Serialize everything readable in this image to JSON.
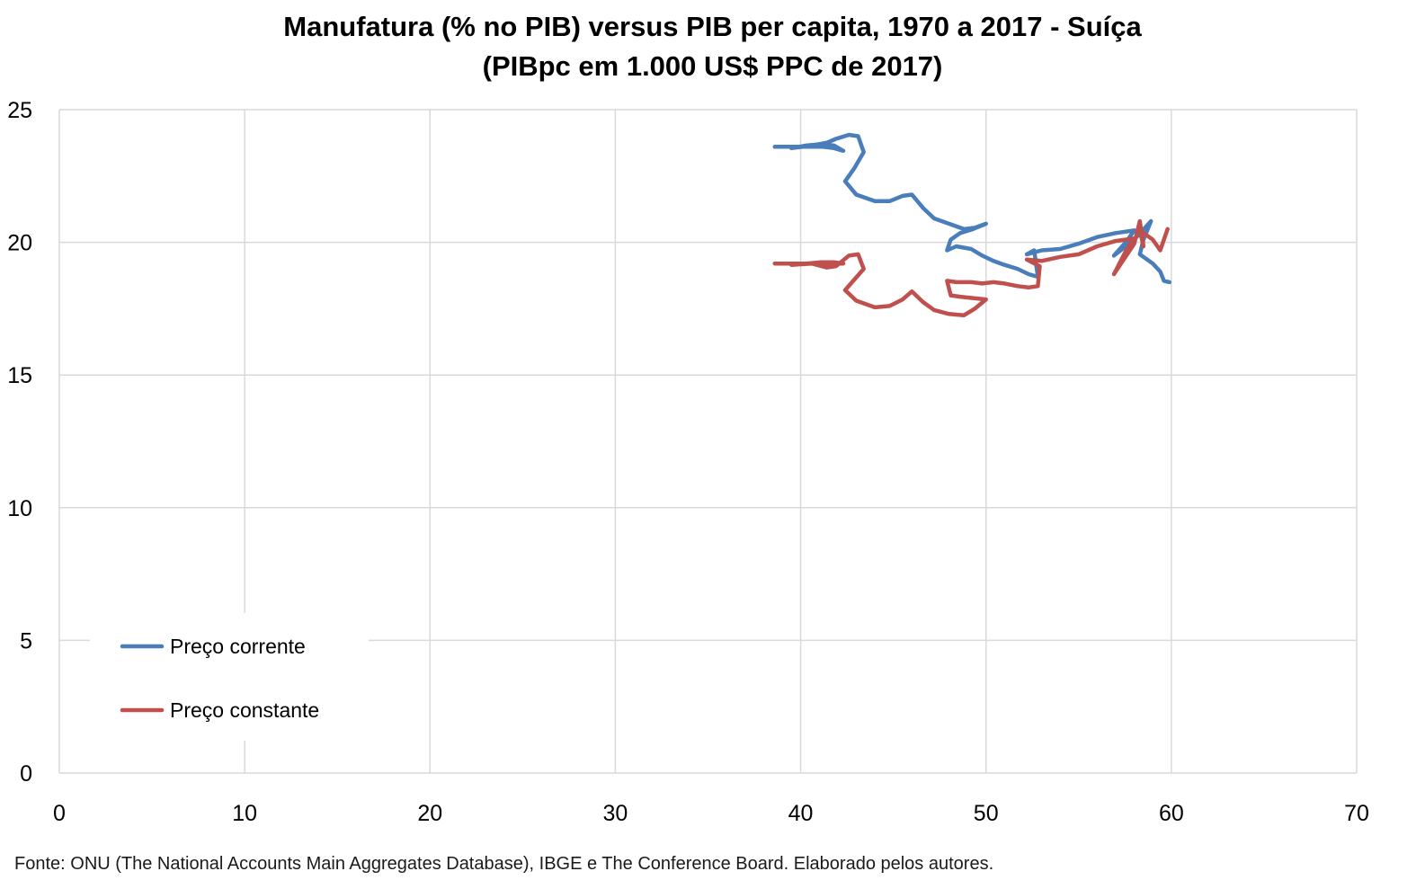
{
  "chart_data": {
    "type": "line",
    "title_lines": [
      "Manufatura (% no PIB) versus PIB per capita, 1970 a 2017 - Suíça",
      "(PIBpc em 1.000 US$ PPC de 2017)"
    ],
    "xlabel": "",
    "ylabel": "",
    "xlim": [
      0,
      70
    ],
    "ylim": [
      0,
      25
    ],
    "x_ticks": [
      0,
      10,
      20,
      30,
      40,
      50,
      60,
      70
    ],
    "y_ticks": [
      0,
      5,
      10,
      15,
      20,
      25
    ],
    "grid": true,
    "legend_position": "lower-left",
    "series": [
      {
        "name": "Preço corrente",
        "color": "#4a7ebb",
        "points": [
          [
            38.6,
            23.6
          ],
          [
            39.6,
            23.6
          ],
          [
            40.4,
            23.6
          ],
          [
            41.2,
            23.6
          ],
          [
            41.8,
            23.55
          ],
          [
            42.3,
            23.45
          ],
          [
            41.8,
            23.65
          ],
          [
            41.1,
            23.7
          ],
          [
            40.3,
            23.65
          ],
          [
            39.5,
            23.55
          ],
          [
            40.6,
            23.65
          ],
          [
            41.4,
            23.75
          ],
          [
            41.9,
            23.9
          ],
          [
            42.6,
            24.05
          ],
          [
            43.1,
            24.0
          ],
          [
            43.4,
            23.4
          ],
          [
            42.9,
            22.8
          ],
          [
            42.4,
            22.3
          ],
          [
            43.0,
            21.8
          ],
          [
            44.0,
            21.55
          ],
          [
            44.8,
            21.55
          ],
          [
            45.5,
            21.75
          ],
          [
            46.0,
            21.8
          ],
          [
            46.6,
            21.3
          ],
          [
            47.2,
            20.9
          ],
          [
            48.0,
            20.7
          ],
          [
            48.8,
            20.5
          ],
          [
            49.4,
            20.55
          ],
          [
            50.0,
            20.7
          ],
          [
            49.3,
            20.5
          ],
          [
            48.6,
            20.35
          ],
          [
            48.1,
            20.1
          ],
          [
            47.9,
            19.7
          ],
          [
            48.4,
            19.85
          ],
          [
            49.2,
            19.75
          ],
          [
            49.8,
            19.5
          ],
          [
            50.4,
            19.3
          ],
          [
            51.0,
            19.15
          ],
          [
            51.7,
            19.0
          ],
          [
            52.3,
            18.8
          ],
          [
            52.8,
            18.7
          ],
          [
            52.6,
            19.7
          ],
          [
            52.2,
            19.55
          ],
          [
            53.0,
            19.7
          ],
          [
            54.0,
            19.75
          ],
          [
            55.0,
            19.95
          ],
          [
            56.0,
            20.2
          ],
          [
            57.0,
            20.35
          ],
          [
            58.0,
            20.45
          ],
          [
            57.6,
            20.05
          ],
          [
            56.9,
            19.5
          ],
          [
            58.0,
            20.1
          ],
          [
            58.9,
            20.8
          ],
          [
            58.5,
            20.1
          ],
          [
            58.3,
            19.55
          ],
          [
            59.0,
            19.2
          ],
          [
            59.4,
            18.9
          ],
          [
            59.6,
            18.55
          ],
          [
            59.9,
            18.5
          ]
        ]
      },
      {
        "name": "Preço constante",
        "color": "#c0504d",
        "points": [
          [
            38.6,
            19.2
          ],
          [
            39.6,
            19.2
          ],
          [
            40.4,
            19.2
          ],
          [
            41.2,
            19.2
          ],
          [
            41.8,
            19.2
          ],
          [
            42.3,
            19.2
          ],
          [
            41.8,
            19.25
          ],
          [
            41.1,
            19.25
          ],
          [
            40.3,
            19.2
          ],
          [
            39.5,
            19.15
          ],
          [
            40.6,
            19.2
          ],
          [
            41.4,
            19.05
          ],
          [
            41.9,
            19.1
          ],
          [
            42.6,
            19.5
          ],
          [
            43.1,
            19.55
          ],
          [
            43.4,
            19.0
          ],
          [
            42.9,
            18.6
          ],
          [
            42.4,
            18.2
          ],
          [
            43.0,
            17.8
          ],
          [
            44.0,
            17.55
          ],
          [
            44.8,
            17.6
          ],
          [
            45.5,
            17.85
          ],
          [
            46.0,
            18.15
          ],
          [
            46.6,
            17.75
          ],
          [
            47.2,
            17.45
          ],
          [
            48.0,
            17.3
          ],
          [
            48.8,
            17.25
          ],
          [
            49.4,
            17.5
          ],
          [
            50.0,
            17.85
          ],
          [
            49.3,
            17.9
          ],
          [
            48.6,
            17.95
          ],
          [
            48.1,
            18.0
          ],
          [
            47.9,
            18.55
          ],
          [
            48.4,
            18.5
          ],
          [
            49.2,
            18.5
          ],
          [
            49.8,
            18.45
          ],
          [
            50.4,
            18.5
          ],
          [
            51.0,
            18.45
          ],
          [
            51.7,
            18.35
          ],
          [
            52.3,
            18.3
          ],
          [
            52.8,
            18.35
          ],
          [
            52.9,
            19.1
          ],
          [
            52.2,
            19.35
          ],
          [
            53.0,
            19.3
          ],
          [
            54.0,
            19.45
          ],
          [
            55.0,
            19.55
          ],
          [
            56.0,
            19.85
          ],
          [
            57.0,
            20.05
          ],
          [
            58.0,
            20.15
          ],
          [
            57.6,
            19.75
          ],
          [
            56.9,
            18.8
          ],
          [
            58.0,
            19.95
          ],
          [
            58.3,
            20.8
          ],
          [
            58.5,
            19.85
          ],
          [
            58.3,
            20.45
          ],
          [
            59.0,
            20.1
          ],
          [
            59.4,
            19.7
          ],
          [
            59.6,
            20.1
          ],
          [
            59.8,
            20.5
          ]
        ]
      }
    ]
  },
  "source_note": "Fonte: ONU (The National Accounts Main Aggregates Database), IBGE e The Conference Board. Elaborado pelos autores."
}
